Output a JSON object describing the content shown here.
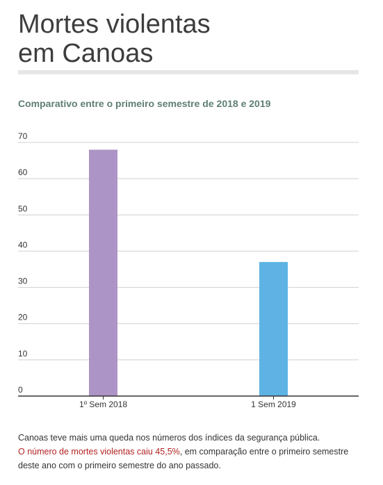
{
  "title_line1": "Mortes violentas",
  "title_line2": "em Canoas",
  "subtitle": "Comparativo entre o primeiro semestre de 2018 e 2019",
  "chart_data": {
    "type": "bar",
    "categories": [
      "1º Sem 2018",
      "1 Sem 2019"
    ],
    "values": [
      68,
      37
    ],
    "colors": [
      "#ad94c6",
      "#5eb3e4"
    ],
    "yticks": [
      0,
      10,
      20,
      30,
      40,
      50,
      60,
      70
    ],
    "ylim": [
      0,
      70
    ],
    "grid": true,
    "title": "Comparativo entre o primeiro semestre de 2018 e 2019",
    "xlabel": "",
    "ylabel": ""
  },
  "footnote": {
    "line1": "Canoas teve mais uma queda nos números dos índices da segurança pública.",
    "highlight": "O número de mortes violentas caiu 45,5%",
    "rest": ", em comparação entre o primeiro semestre deste ano com o primeiro semestre do ano passado."
  },
  "colors": {
    "title": "#3d3d3d",
    "subtitle": "#5f7e73",
    "highlight": "#b22222",
    "rule": "#e6e6e6"
  }
}
